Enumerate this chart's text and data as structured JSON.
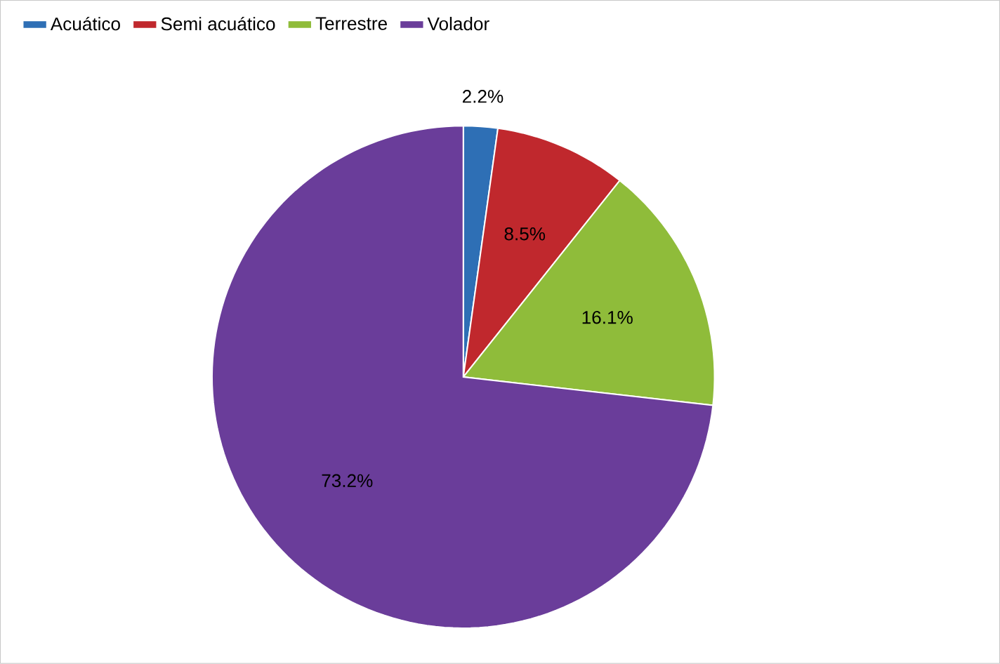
{
  "chart_data": {
    "type": "pie",
    "categories": [
      "Acuático",
      "Semi acuático",
      "Terrestre",
      "Volador"
    ],
    "values": [
      2.2,
      8.5,
      16.1,
      73.2
    ],
    "colors": [
      "#2e6fb5",
      "#c0282d",
      "#8fbc3a",
      "#6a3d9a"
    ],
    "value_labels": [
      "2.2%",
      "8.5%",
      "16.1%",
      "73.2%"
    ],
    "legend": "top left"
  }
}
